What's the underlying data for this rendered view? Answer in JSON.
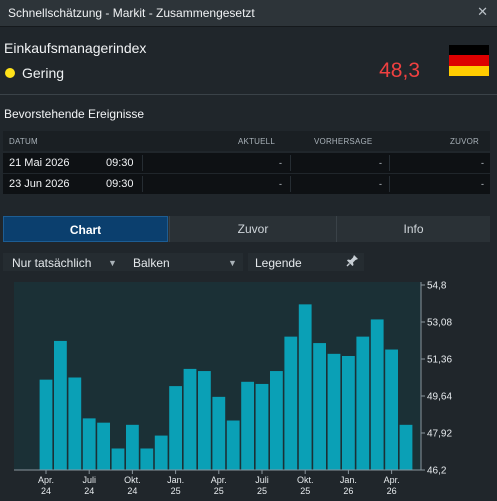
{
  "window": {
    "title": "Schnellschätzung - Markit - Zusammengesetzt",
    "close_icon": "close-icon"
  },
  "indicator": {
    "name": "Einkaufsmanagerindex",
    "importance_label": "Gering",
    "importance_color": "#ffe21a",
    "value": "48,3",
    "value_color": "#ef4040",
    "flag_colors": [
      "#000000",
      "#dd0000",
      "#ffcc00"
    ]
  },
  "events": {
    "title": "Bevorstehende Ereignisse",
    "headers": {
      "date": "DATUM",
      "actual": "AKTUELL",
      "forecast": "VORHERSAGE",
      "previous": "ZUVOR"
    },
    "rows": [
      {
        "date": "21 Mai 2026",
        "time": "09:30",
        "actual": "-",
        "forecast": "-",
        "previous": "-"
      },
      {
        "date": "23 Jun 2026",
        "time": "09:30",
        "actual": "-",
        "forecast": "-",
        "previous": "-"
      }
    ]
  },
  "tabs": [
    {
      "label": "Chart",
      "active": true
    },
    {
      "label": "Zuvor",
      "active": false
    },
    {
      "label": "Info",
      "active": false
    }
  ],
  "options": {
    "filter": "Nur tatsächlich",
    "chart_type": "Balken",
    "legend": "Legende",
    "dropdown_icon": "dropdown-arrow-icon",
    "pin_icon": "pin-icon"
  },
  "chart_data": {
    "type": "bar",
    "bar_color": "#0aa0b6",
    "ylim": [
      46.2,
      54.8
    ],
    "y_ticks": [
      "54,8",
      "53,08",
      "51,36",
      "49,64",
      "47,92",
      "46,2"
    ],
    "x_labels": [
      {
        "index": 0,
        "line1": "Apr.",
        "line2": "24"
      },
      {
        "index": 3,
        "line1": "Juli",
        "line2": "24"
      },
      {
        "index": 6,
        "line1": "Okt.",
        "line2": "24"
      },
      {
        "index": 9,
        "line1": "Jan.",
        "line2": "25"
      },
      {
        "index": 12,
        "line1": "Apr.",
        "line2": "25"
      },
      {
        "index": 15,
        "line1": "Juli",
        "line2": "25"
      },
      {
        "index": 18,
        "line1": "Okt.",
        "line2": "25"
      },
      {
        "index": 21,
        "line1": "Jan.",
        "line2": "26"
      },
      {
        "index": 24,
        "line1": "Apr.",
        "line2": "26"
      }
    ],
    "values": [
      50.4,
      52.2,
      50.5,
      48.6,
      48.4,
      47.2,
      48.3,
      47.2,
      47.8,
      50.1,
      50.9,
      50.8,
      49.6,
      48.5,
      50.3,
      50.2,
      50.8,
      52.4,
      53.9,
      52.1,
      51.6,
      51.5,
      52.4,
      53.2,
      51.8,
      48.3
    ]
  }
}
